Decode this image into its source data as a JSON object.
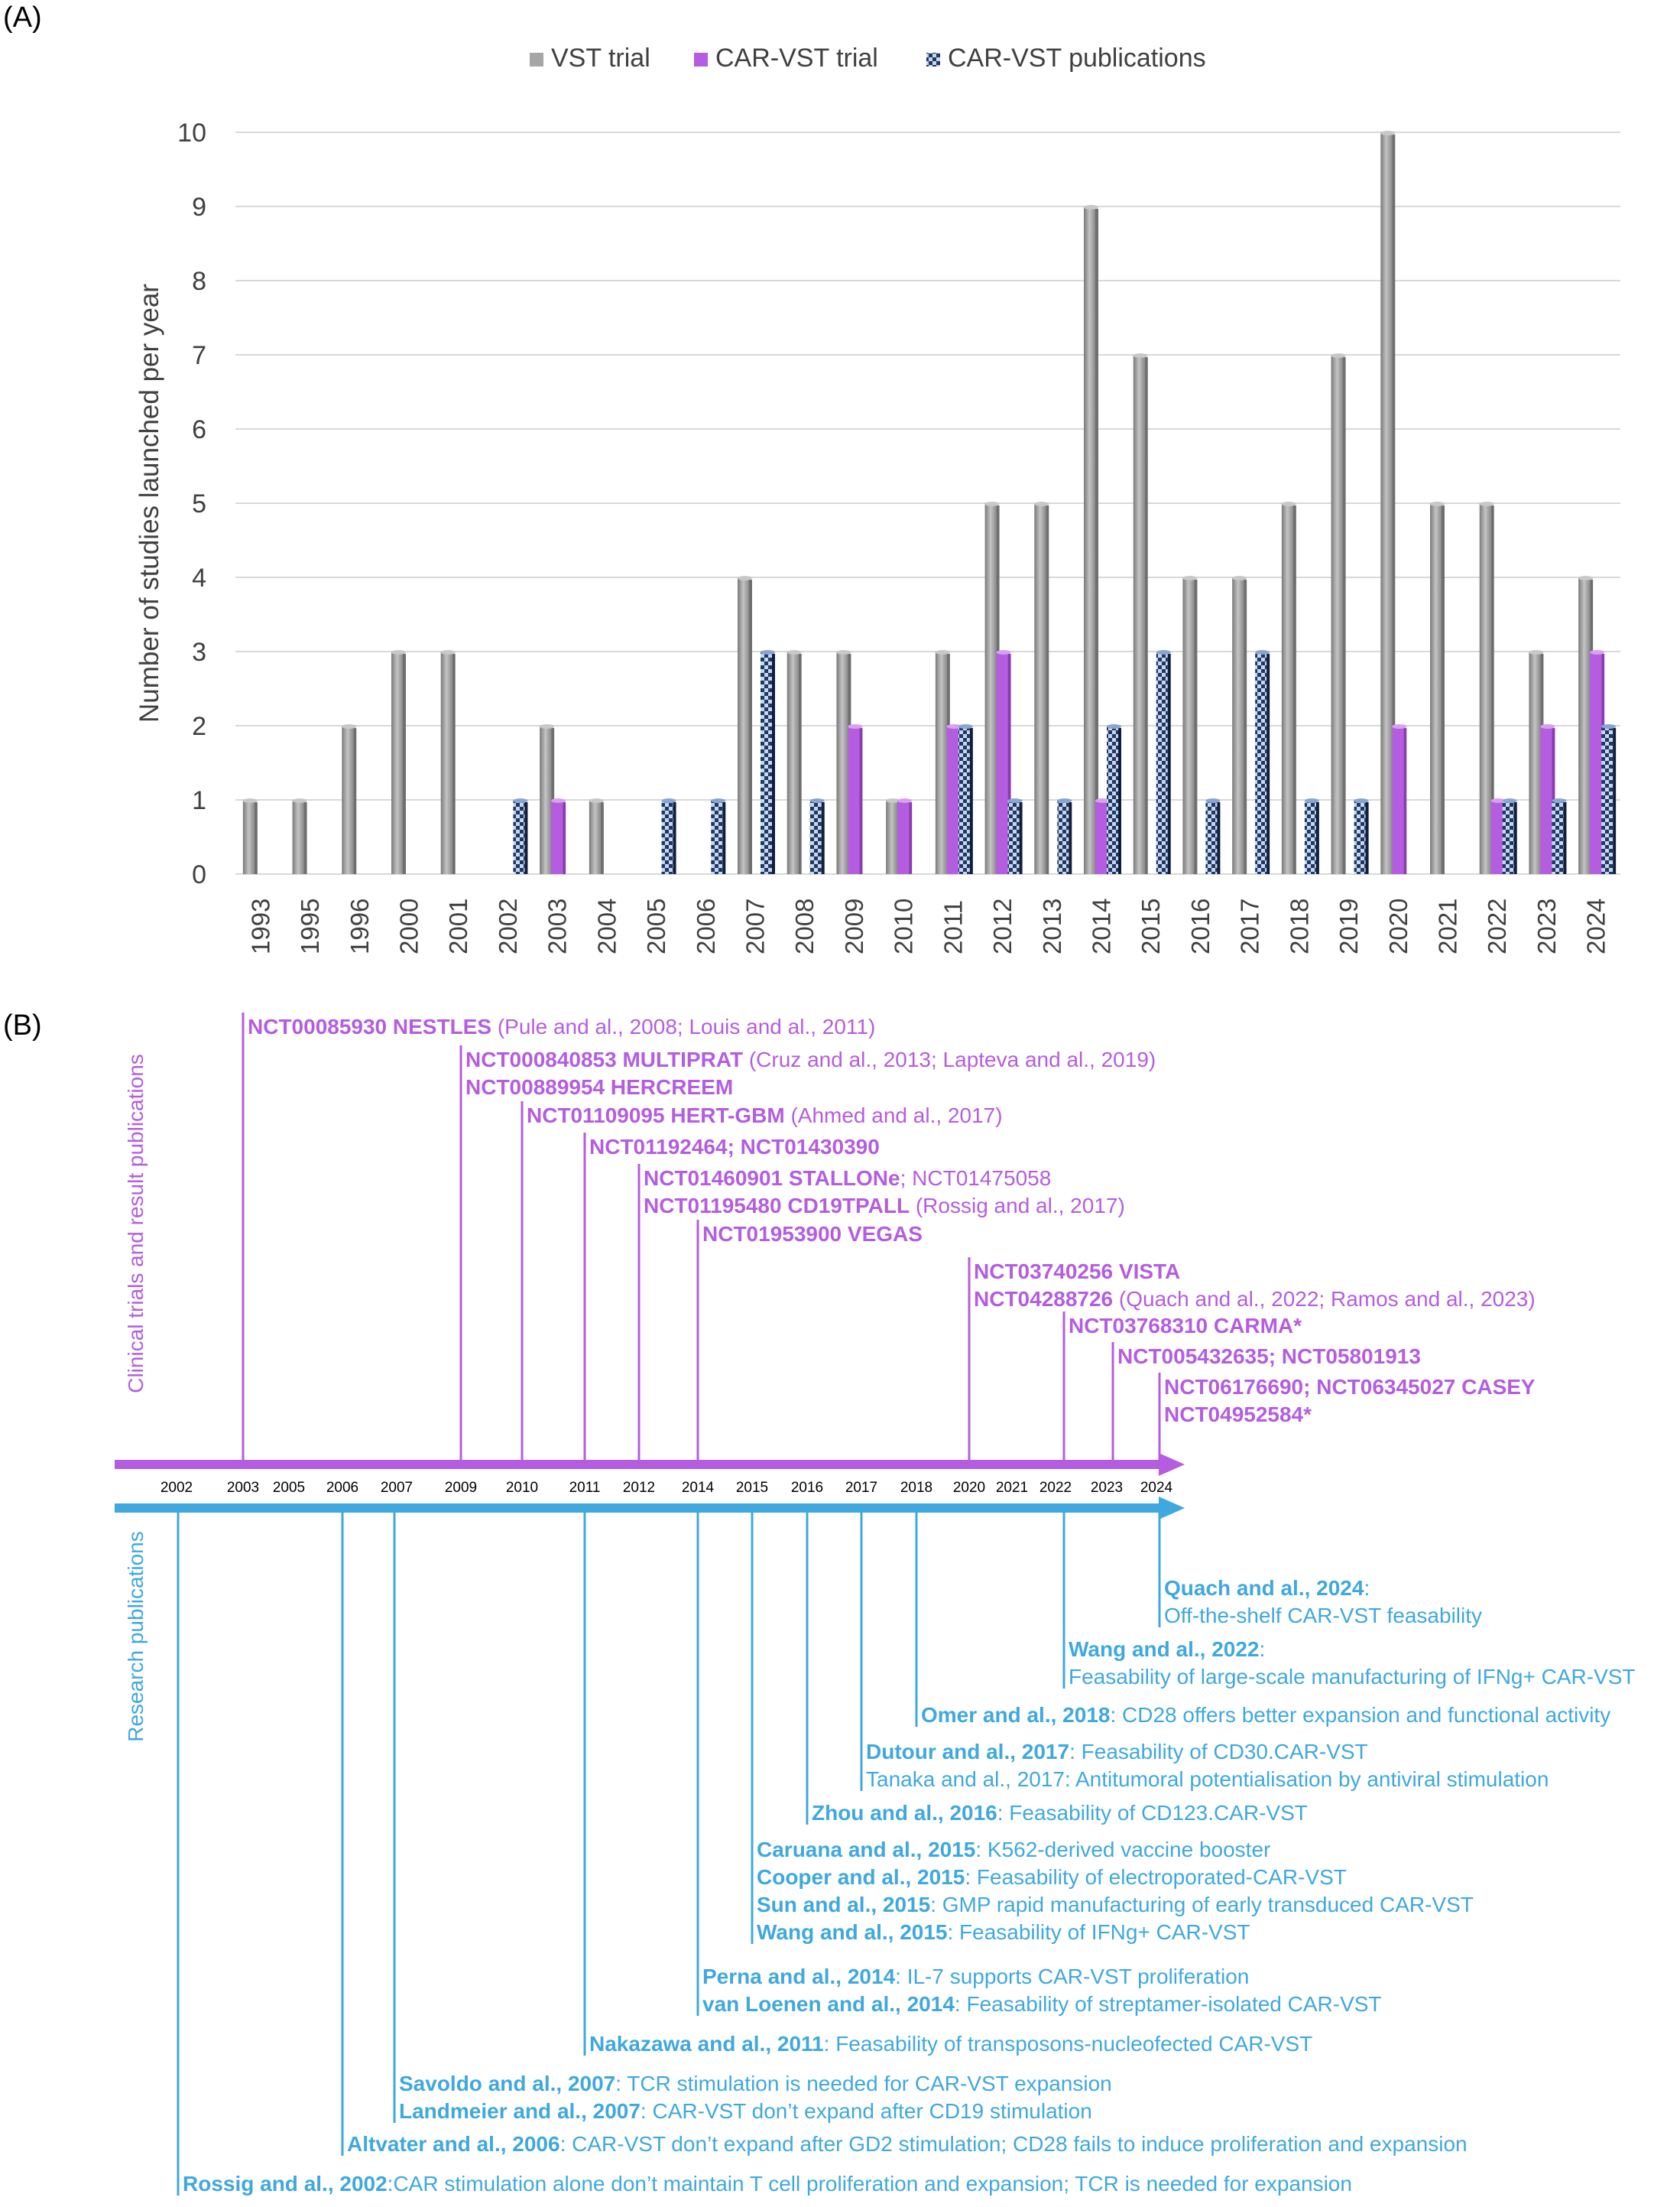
{
  "panel_a_label": "(A)",
  "panel_b_label": "(B)",
  "colors": {
    "vst": "#a6a6a6",
    "car_vst": "#b45de0",
    "pub": "#1f3864",
    "pub_light": "#c9d7ee",
    "trials": "#b45de0",
    "research": "#3fa8de",
    "grid": "#d9d9d9",
    "axis_text": "#404040"
  },
  "chart_data": {
    "type": "bar",
    "title": "",
    "xlabel": "",
    "ylabel": "Number of studies launched per year",
    "ylim": [
      0,
      10
    ],
    "yticks": [
      "0",
      "1",
      "2",
      "3",
      "4",
      "5",
      "6",
      "7",
      "8",
      "9",
      "10"
    ],
    "grid": true,
    "legend_position": "top-center",
    "categories": [
      "1993",
      "1995",
      "1996",
      "2000",
      "2001",
      "2002",
      "2003",
      "2004",
      "2005",
      "2006",
      "2007",
      "2008",
      "2009",
      "2010",
      "2011",
      "2012",
      "2013",
      "2014",
      "2015",
      "2016",
      "2017",
      "2018",
      "2019",
      "2020",
      "2021",
      "2022",
      "2023",
      "2024"
    ],
    "series": [
      {
        "name": "VST trial",
        "values": [
          1,
          1,
          2,
          3,
          3,
          0,
          2,
          1,
          0,
          0,
          4,
          3,
          3,
          1,
          3,
          5,
          5,
          9,
          7,
          4,
          4,
          5,
          7,
          10,
          5,
          5,
          3,
          4
        ]
      },
      {
        "name": "CAR-VST trial",
        "values": [
          0,
          0,
          0,
          0,
          0,
          0,
          1,
          0,
          0,
          0,
          0,
          0,
          2,
          1,
          2,
          3,
          0,
          1,
          0,
          0,
          0,
          0,
          0,
          2,
          0,
          1,
          2,
          3
        ]
      },
      {
        "name": "CAR-VST publications",
        "values": [
          0,
          0,
          0,
          0,
          0,
          1,
          0,
          0,
          1,
          1,
          3,
          1,
          0,
          0,
          2,
          1,
          1,
          2,
          3,
          1,
          3,
          1,
          1,
          0,
          0,
          1,
          1,
          2
        ]
      }
    ]
  },
  "timeline": {
    "trials_axis_label": "Clinical trials and result publications",
    "research_axis_label": "Research publications",
    "years": [
      "2002",
      "2003",
      "2005",
      "2006",
      "2007",
      "2009",
      "2010",
      "2011",
      "2012",
      "2014",
      "2015",
      "2016",
      "2017",
      "2018",
      "2020",
      "2021",
      "2022",
      "2023",
      "2024"
    ],
    "trials": [
      {
        "year": "2003",
        "lines": [
          [
            {
              "b": true,
              "t": "NCT00085930 NESTLES"
            },
            {
              "b": false,
              "t": " (Pule and al., 2008; Louis and al., 2011)"
            }
          ]
        ]
      },
      {
        "year": "2009",
        "lines": [
          [
            {
              "b": true,
              "t": "NCT000840853 MULTIPRAT"
            },
            {
              "b": false,
              "t": " (Cruz and al., 2013; Lapteva and al., 2019)"
            }
          ],
          [
            {
              "b": true,
              "t": "NCT00889954 HERCREEM"
            }
          ]
        ]
      },
      {
        "year": "2010",
        "lines": [
          [
            {
              "b": true,
              "t": "NCT01109095 HERT-GBM"
            },
            {
              "b": false,
              "t": " (Ahmed and al., 2017)"
            }
          ]
        ]
      },
      {
        "year": "2011",
        "lines": [
          [
            {
              "b": true,
              "t": "NCT01192464; NCT01430390"
            }
          ]
        ]
      },
      {
        "year": "2012",
        "lines": [
          [
            {
              "b": true,
              "t": "NCT01460901 STALLONe"
            },
            {
              "b": false,
              "t": "; NCT01475058"
            }
          ],
          [
            {
              "b": true,
              "t": "NCT01195480 CD19TPALL"
            },
            {
              "b": false,
              "t": " (Rossig and al., 2017)"
            }
          ]
        ]
      },
      {
        "year": "2014",
        "lines": [
          [
            {
              "b": true,
              "t": "NCT01953900 VEGAS"
            }
          ]
        ]
      },
      {
        "year": "2020",
        "lines": [
          [
            {
              "b": true,
              "t": "NCT03740256 VISTA"
            }
          ],
          [
            {
              "b": true,
              "t": "NCT04288726"
            },
            {
              "b": false,
              "t": " (Quach and al., 2022; Ramos and al., 2023)"
            }
          ]
        ]
      },
      {
        "year": "2022",
        "lines": [
          [
            {
              "b": true,
              "t": "NCT03768310 CARMA*"
            }
          ]
        ]
      },
      {
        "year": "2023",
        "lines": [
          [
            {
              "b": true,
              "t": "NCT005432635; NCT05801913"
            }
          ]
        ]
      },
      {
        "year": "2024",
        "lines": [
          [
            {
              "b": true,
              "t": "NCT06176690; NCT06345027 CASEY"
            }
          ],
          [
            {
              "b": true,
              "t": "NCT04952584*"
            }
          ]
        ]
      }
    ],
    "research": [
      {
        "year": "2024",
        "lines": [
          [
            {
              "b": true,
              "t": "Quach and al., 2024"
            },
            {
              "b": false,
              "t": ":"
            }
          ],
          [
            {
              "b": false,
              "t": "Off-the-shelf CAR-VST feasability"
            }
          ]
        ]
      },
      {
        "year": "2022",
        "lines": [
          [
            {
              "b": true,
              "t": "Wang and al., 2022"
            },
            {
              "b": false,
              "t": ":"
            }
          ],
          [
            {
              "b": false,
              "t": "Feasability of large-scale manufacturing of IFNg+ CAR-VST"
            }
          ]
        ]
      },
      {
        "year": "2018",
        "lines": [
          [
            {
              "b": true,
              "t": "Omer and al., 2018"
            },
            {
              "b": false,
              "t": ": CD28 offers better expansion and functional activity"
            }
          ]
        ]
      },
      {
        "year": "2017",
        "lines": [
          [
            {
              "b": true,
              "t": "Dutour and al., 2017"
            },
            {
              "b": false,
              "t": ": Feasability of CD30.CAR-VST"
            }
          ],
          [
            {
              "b": false,
              "t": "Tanaka and al., 2017: Antitumoral potentialisation by antiviral stimulation"
            }
          ]
        ]
      },
      {
        "year": "2016",
        "lines": [
          [
            {
              "b": true,
              "t": "Zhou and al., 2016"
            },
            {
              "b": false,
              "t": ": Feasability of CD123.CAR-VST"
            }
          ]
        ]
      },
      {
        "year": "2015",
        "lines": [
          [
            {
              "b": true,
              "t": "Caruana and al., 2015"
            },
            {
              "b": false,
              "t": ": K562-derived vaccine booster"
            }
          ],
          [
            {
              "b": true,
              "t": "Cooper and al., 2015"
            },
            {
              "b": false,
              "t": ": Feasability of electroporated-CAR-VST"
            }
          ],
          [
            {
              "b": true,
              "t": "Sun and al., 2015"
            },
            {
              "b": false,
              "t": ": GMP rapid manufacturing of early transduced CAR-VST"
            }
          ],
          [
            {
              "b": true,
              "t": "Wang and al., 2015"
            },
            {
              "b": false,
              "t": ": Feasability of IFNg+ CAR-VST"
            }
          ]
        ]
      },
      {
        "year": "2014",
        "lines": [
          [
            {
              "b": true,
              "t": "Perna and al., 2014"
            },
            {
              "b": false,
              "t": ": IL-7 supports CAR-VST proliferation"
            }
          ],
          [
            {
              "b": true,
              "t": "van Loenen and al., 2014"
            },
            {
              "b": false,
              "t": ": Feasability of streptamer-isolated CAR-VST"
            }
          ]
        ]
      },
      {
        "year": "2011",
        "lines": [
          [
            {
              "b": true,
              "t": "Nakazawa and al., 2011"
            },
            {
              "b": false,
              "t": ": Feasability of transposons-nucleofected CAR-VST"
            }
          ]
        ]
      },
      {
        "year": "2007",
        "lines": [
          [
            {
              "b": true,
              "t": "Savoldo and al., 2007"
            },
            {
              "b": false,
              "t": ": TCR stimulation is needed for CAR-VST expansion"
            }
          ],
          [
            {
              "b": true,
              "t": "Landmeier and al., 2007"
            },
            {
              "b": false,
              "t": ": CAR-VST don’t expand after CD19 stimulation"
            }
          ]
        ]
      },
      {
        "year": "2006",
        "lines": [
          [
            {
              "b": true,
              "t": "Altvater and al., 2006"
            },
            {
              "b": false,
              "t": ": CAR-VST don’t expand after GD2 stimulation; CD28 fails to induce proliferation and expansion"
            }
          ]
        ]
      },
      {
        "year": "2002",
        "lines": [
          [
            {
              "b": true,
              "t": "Rossig and al., 2002"
            },
            {
              "b": false,
              "t": ":CAR stimulation alone don’t maintain T cell proliferation and expansion; TCR is needed for expansion"
            }
          ]
        ]
      }
    ]
  }
}
